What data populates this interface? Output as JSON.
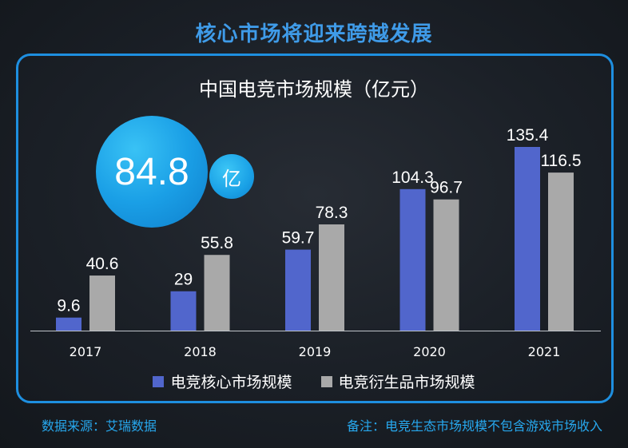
{
  "headline": "核心市场将迎来跨越发展",
  "highlight": {
    "value": "84.8",
    "unit": "亿"
  },
  "footer": {
    "source": "数据来源：艾瑞数据",
    "note": "备注：电竞生态市场规模不包含游戏市场收入"
  },
  "colors": {
    "core": "#5166cc",
    "derivative": "#a9a9a9",
    "accent": "#1e8fe0"
  },
  "chart_data": {
    "type": "bar",
    "title": "中国电竞市场规模（亿元）",
    "categories": [
      "2017",
      "2018",
      "2019",
      "2020",
      "2021"
    ],
    "series": [
      {
        "name": "电竞核心市场规模",
        "values": [
          9.6,
          29,
          59.7,
          104.3,
          135.4
        ],
        "labels": [
          "9.6",
          "29",
          "59.7",
          "104.3",
          "135.4"
        ]
      },
      {
        "name": "电竞衍生品市场规模",
        "values": [
          40.6,
          55.8,
          78.3,
          96.7,
          116.5
        ],
        "labels": [
          "40.6",
          "55.8",
          "78.3",
          "96.7",
          "116.5"
        ]
      }
    ],
    "ylim": [
      0,
      135.4
    ],
    "xlabel": "",
    "ylabel": "",
    "legend_position": "bottom"
  }
}
